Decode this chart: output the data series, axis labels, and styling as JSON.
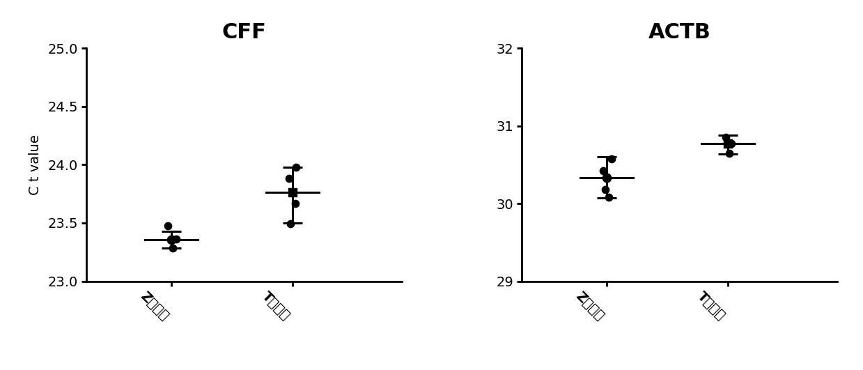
{
  "panels": [
    {
      "title": "CFF",
      "ylabel": "C t value",
      "ylim": [
        23.0,
        25.0
      ],
      "yticks": [
        23.0,
        23.5,
        24.0,
        24.5,
        25.0
      ],
      "groups": [
        {
          "label": "Z试剂盒",
          "x": 1,
          "mean": 23.355,
          "sem_low": 23.285,
          "sem_high": 23.425,
          "points": [
            23.475,
            23.365,
            23.285
          ],
          "point_offsets": [
            -0.03,
            0.04,
            0.01
          ],
          "marker": "o"
        },
        {
          "label": "T试剂盒",
          "x": 2,
          "mean": 23.76,
          "sem_low": 23.5,
          "sem_high": 23.975,
          "points": [
            23.975,
            23.88,
            23.665,
            23.495
          ],
          "point_offsets": [
            0.03,
            -0.03,
            0.02,
            -0.02
          ],
          "marker": "s"
        }
      ]
    },
    {
      "title": "ACTB",
      "ylabel": "",
      "ylim": [
        29,
        32
      ],
      "yticks": [
        29,
        30,
        31,
        32
      ],
      "groups": [
        {
          "label": "Z试剂盒",
          "x": 1,
          "mean": 30.33,
          "sem_low": 30.07,
          "sem_high": 30.6,
          "points": [
            30.57,
            30.42,
            30.18,
            30.08
          ],
          "point_offsets": [
            0.04,
            -0.03,
            -0.01,
            0.02
          ],
          "marker": "o"
        },
        {
          "label": "T试剂盒",
          "x": 2,
          "mean": 30.77,
          "sem_low": 30.635,
          "sem_high": 30.875,
          "points": [
            30.855,
            30.775,
            30.645
          ],
          "point_offsets": [
            -0.02,
            0.03,
            0.01
          ],
          "marker": "s"
        }
      ]
    }
  ],
  "bg_color": "#ffffff",
  "data_color": "#000000",
  "title_fontsize": 22,
  "label_fontsize": 14,
  "tick_fontsize": 14,
  "point_size": 55,
  "mean_point_size": 80,
  "errorbar_linewidth": 2.2,
  "errorbar_capsize": 10,
  "errorbar_capthick": 2.2,
  "xlim": [
    0.3,
    2.9
  ]
}
